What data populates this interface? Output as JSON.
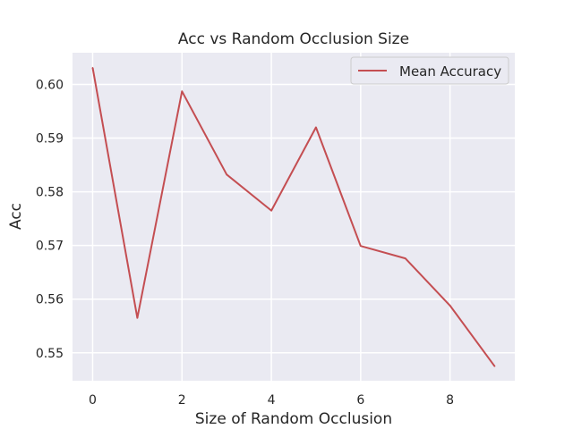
{
  "chart_data": {
    "type": "line",
    "title": "Acc vs Random Occlusion Size",
    "xlabel": "Size of Random Occlusion",
    "ylabel": "Acc",
    "xlim": [
      -0.45,
      9.45
    ],
    "ylim": [
      0.5448,
      0.6059
    ],
    "xticks": [
      0,
      2,
      4,
      6,
      8
    ],
    "xtick_labels": [
      "0",
      "2",
      "4",
      "6",
      "8"
    ],
    "yticks": [
      0.55,
      0.56,
      0.57,
      0.58,
      0.59,
      0.6
    ],
    "ytick_labels": [
      "0.55",
      "0.56",
      "0.57",
      "0.58",
      "0.59",
      "0.60"
    ],
    "grid": true,
    "legend_position": "top-right",
    "background_color": "#eaeaf2",
    "grid_color": "#ffffff",
    "series": [
      {
        "name": "Mean Accuracy",
        "color": "#c44e52",
        "x": [
          0,
          1,
          2,
          3,
          4,
          5,
          6,
          7,
          8,
          9
        ],
        "y": [
          0.6031,
          0.5565,
          0.5987,
          0.5832,
          0.5765,
          0.592,
          0.5699,
          0.5676,
          0.5588,
          0.5475
        ]
      }
    ]
  }
}
